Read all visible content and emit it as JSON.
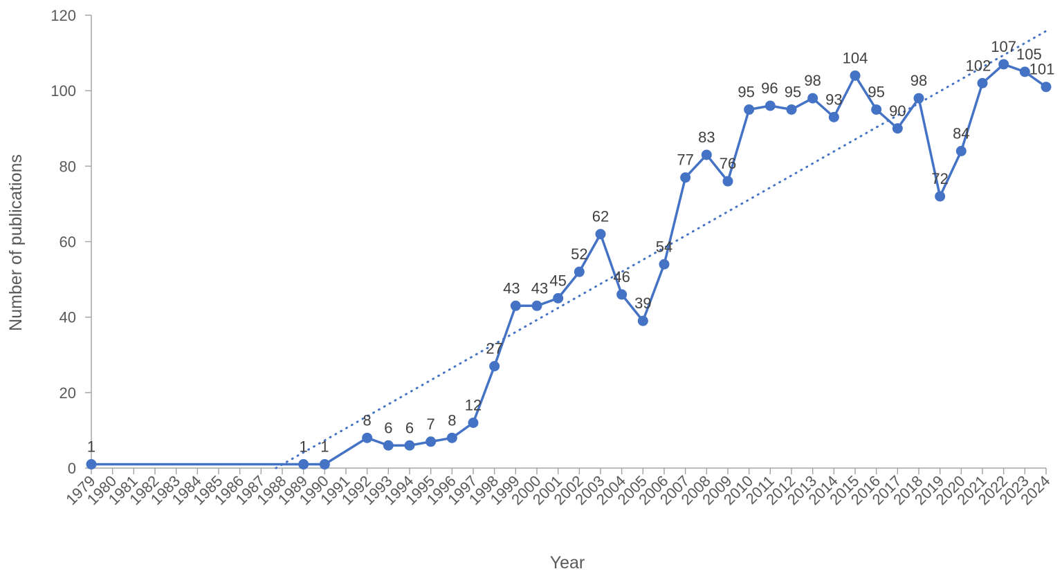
{
  "chart_data": {
    "type": "line",
    "title": "",
    "xlabel": "Year",
    "ylabel": "Number of publications",
    "ylim": [
      0,
      120
    ],
    "yticks": [
      0,
      20,
      40,
      60,
      80,
      100,
      120
    ],
    "grid": false,
    "legend": null,
    "categories": [
      "1979",
      "1980",
      "1981",
      "1982",
      "1983",
      "1984",
      "1985",
      "1986",
      "1987",
      "1988",
      "1989",
      "1990",
      "1991",
      "1992",
      "1993",
      "1994",
      "1995",
      "1996",
      "1997",
      "1998",
      "1999",
      "2000",
      "2001",
      "2002",
      "2003",
      "2004",
      "2005",
      "2006",
      "2007",
      "2008",
      "2009",
      "2010",
      "2011",
      "2012",
      "2013",
      "2014",
      "2015",
      "2016",
      "2017",
      "2018",
      "2019",
      "2020",
      "2021",
      "2022",
      "2023",
      "2024"
    ],
    "series": [
      {
        "name": "Number of publications",
        "color": "#4472C4",
        "marker": "circle",
        "points": [
          {
            "x": "1979",
            "y": 1
          },
          {
            "x": "1989",
            "y": 1
          },
          {
            "x": "1990",
            "y": 1
          },
          {
            "x": "1992",
            "y": 8
          },
          {
            "x": "1993",
            "y": 6
          },
          {
            "x": "1994",
            "y": 6
          },
          {
            "x": "1995",
            "y": 7
          },
          {
            "x": "1996",
            "y": 8
          },
          {
            "x": "1997",
            "y": 12
          },
          {
            "x": "1998",
            "y": 27
          },
          {
            "x": "1999",
            "y": 43
          },
          {
            "x": "2000",
            "y": 43
          },
          {
            "x": "2001",
            "y": 45
          },
          {
            "x": "2002",
            "y": 52
          },
          {
            "x": "2003",
            "y": 62
          },
          {
            "x": "2004",
            "y": 46
          },
          {
            "x": "2005",
            "y": 39
          },
          {
            "x": "2006",
            "y": 54
          },
          {
            "x": "2007",
            "y": 77
          },
          {
            "x": "2008",
            "y": 83
          },
          {
            "x": "2009",
            "y": 76
          },
          {
            "x": "2010",
            "y": 95
          },
          {
            "x": "2011",
            "y": 96
          },
          {
            "x": "2012",
            "y": 95
          },
          {
            "x": "2013",
            "y": 98
          },
          {
            "x": "2014",
            "y": 93
          },
          {
            "x": "2015",
            "y": 104
          },
          {
            "x": "2016",
            "y": 95
          },
          {
            "x": "2017",
            "y": 90
          },
          {
            "x": "2018",
            "y": 98
          },
          {
            "x": "2019",
            "y": 72
          },
          {
            "x": "2020",
            "y": 84
          },
          {
            "x": "2021",
            "y": 102
          },
          {
            "x": "2022",
            "y": 107
          },
          {
            "x": "2023",
            "y": 105
          },
          {
            "x": "2024",
            "y": 101
          }
        ]
      }
    ],
    "trendline": {
      "type": "linear",
      "style": "dotted",
      "color": "#4472C4",
      "start": {
        "x": 1987.7,
        "y": 0
      },
      "end": {
        "x": 2024,
        "y": 115.8
      }
    }
  }
}
